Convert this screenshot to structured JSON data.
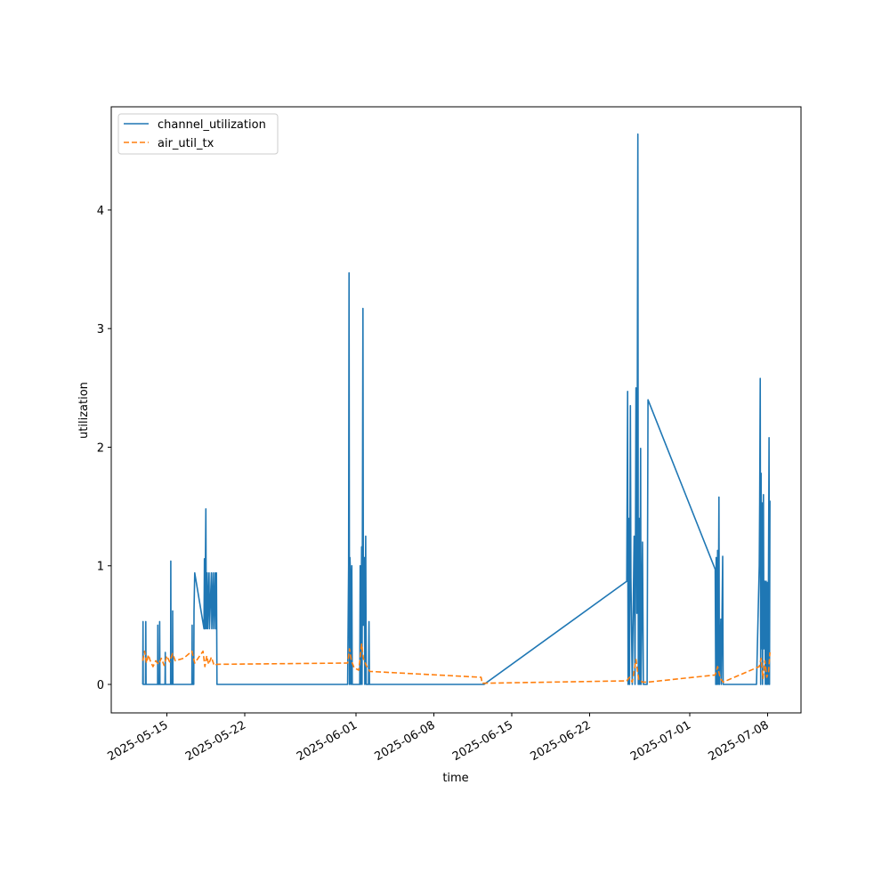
{
  "chart_data": {
    "type": "line",
    "title": "",
    "xlabel": "time",
    "ylabel": "utilization",
    "x_is_date": true,
    "xlim": [
      "2025-05-10",
      "2025-07-11"
    ],
    "ylim": [
      -0.24,
      4.87
    ],
    "xticks": [
      {
        "value": "2025-05-15",
        "label": "2025-05-15"
      },
      {
        "value": "2025-05-22",
        "label": "2025-05-22"
      },
      {
        "value": "2025-06-01",
        "label": "2025-06-01"
      },
      {
        "value": "2025-06-08",
        "label": "2025-06-08"
      },
      {
        "value": "2025-06-15",
        "label": "2025-06-15"
      },
      {
        "value": "2025-06-22",
        "label": "2025-06-22"
      },
      {
        "value": "2025-07-01",
        "label": "2025-07-01"
      },
      {
        "value": "2025-07-08",
        "label": "2025-07-08"
      }
    ],
    "yticks": [
      {
        "value": 0,
        "label": "0"
      },
      {
        "value": 1,
        "label": "1"
      },
      {
        "value": 2,
        "label": "2"
      },
      {
        "value": 3,
        "label": "3"
      },
      {
        "value": 4,
        "label": "4"
      }
    ],
    "grid": false,
    "legend_position": "top-left",
    "series": [
      {
        "name": "channel_utilization",
        "color": "#1f77b4",
        "style": "solid",
        "points": [
          [
            "2025-05-12T20:00",
            0
          ],
          [
            "2025-05-12T20:30",
            0.53
          ],
          [
            "2025-05-12T21:00",
            0
          ],
          [
            "2025-05-13T02:00",
            0
          ],
          [
            "2025-05-13T02:30",
            0.53
          ],
          [
            "2025-05-13T03:00",
            0
          ],
          [
            "2025-05-13T12:00",
            0
          ],
          [
            "2025-05-14T00:00",
            0
          ],
          [
            "2025-05-14T04:00",
            0
          ],
          [
            "2025-05-14T04:30",
            0.5
          ],
          [
            "2025-05-14T05:00",
            0
          ],
          [
            "2025-05-14T08:00",
            0
          ],
          [
            "2025-05-14T08:30",
            0.53
          ],
          [
            "2025-05-14T09:00",
            0
          ],
          [
            "2025-05-14T20:00",
            0
          ],
          [
            "2025-05-14T20:30",
            0.27
          ],
          [
            "2025-05-14T21:00",
            0
          ],
          [
            "2025-05-15T08:00",
            0
          ],
          [
            "2025-05-15T08:30",
            1.04
          ],
          [
            "2025-05-15T09:00",
            0
          ],
          [
            "2025-05-15T12:00",
            0
          ],
          [
            "2025-05-15T12:30",
            0.62
          ],
          [
            "2025-05-15T13:00",
            0
          ],
          [
            "2025-05-16T12:00",
            0
          ],
          [
            "2025-05-17T00:00",
            0
          ],
          [
            "2025-05-17T06:00",
            0
          ],
          [
            "2025-05-17T06:30",
            0.5
          ],
          [
            "2025-05-17T07:00",
            0
          ],
          [
            "2025-05-17T10:00",
            0
          ],
          [
            "2025-05-17T10:30",
            0.62
          ],
          [
            "2025-05-17T12:00",
            0.94
          ],
          [
            "2025-05-18T08:00",
            0.47
          ],
          [
            "2025-05-18T09:00",
            1.06
          ],
          [
            "2025-05-18T10:00",
            0.47
          ],
          [
            "2025-05-18T12:00",
            1.48
          ],
          [
            "2025-05-18T13:00",
            0.47
          ],
          [
            "2025-05-18T15:00",
            0.94
          ],
          [
            "2025-05-18T16:00",
            0.47
          ],
          [
            "2025-05-18T19:00",
            0.94
          ],
          [
            "2025-05-18T20:00",
            0.47
          ],
          [
            "2025-05-19T00:00",
            0.94
          ],
          [
            "2025-05-19T01:00",
            0.47
          ],
          [
            "2025-05-19T04:00",
            0.94
          ],
          [
            "2025-05-19T05:00",
            0.47
          ],
          [
            "2025-05-19T08:00",
            0.94
          ],
          [
            "2025-05-19T09:00",
            0.47
          ],
          [
            "2025-05-19T11:00",
            0.94
          ],
          [
            "2025-05-19T12:00",
            0
          ],
          [
            "2025-05-25T00:00",
            0
          ],
          [
            "2025-05-31T00:00",
            0
          ],
          [
            "2025-05-31T06:00",
            0
          ],
          [
            "2025-05-31T08:00",
            1.0
          ],
          [
            "2025-05-31T09:00",
            3.47
          ],
          [
            "2025-05-31T10:00",
            0
          ],
          [
            "2025-05-31T11:00",
            1.07
          ],
          [
            "2025-05-31T12:00",
            0.93
          ],
          [
            "2025-05-31T13:00",
            0
          ],
          [
            "2025-05-31T15:00",
            1.0
          ],
          [
            "2025-05-31T16:00",
            0
          ],
          [
            "2025-06-01T00:00",
            0
          ],
          [
            "2025-06-01T08:00",
            0
          ],
          [
            "2025-06-01T09:00",
            1.0
          ],
          [
            "2025-06-01T10:00",
            0
          ],
          [
            "2025-06-01T12:00",
            1.16
          ],
          [
            "2025-06-01T13:00",
            0
          ],
          [
            "2025-06-01T15:00",
            3.17
          ],
          [
            "2025-06-01T16:00",
            0.5
          ],
          [
            "2025-06-01T18:00",
            1.07
          ],
          [
            "2025-06-01T19:00",
            0
          ],
          [
            "2025-06-01T21:00",
            1.25
          ],
          [
            "2025-06-01T22:00",
            0
          ],
          [
            "2025-06-02T03:00",
            0
          ],
          [
            "2025-06-02T04:00",
            0.53
          ],
          [
            "2025-06-02T05:00",
            0
          ],
          [
            "2025-06-12T00:00",
            0
          ],
          [
            "2025-06-12T12:00",
            0
          ],
          [
            "2025-06-25T08:00",
            0.87
          ],
          [
            "2025-06-25T10:00",
            2.47
          ],
          [
            "2025-06-25T11:00",
            0
          ],
          [
            "2025-06-25T13:00",
            1.4
          ],
          [
            "2025-06-25T14:00",
            0
          ],
          [
            "2025-06-25T16:00",
            2.35
          ],
          [
            "2025-06-25T17:00",
            0.9
          ],
          [
            "2025-06-25T20:00",
            0
          ],
          [
            "2025-06-26T00:00",
            1.25
          ],
          [
            "2025-06-26T02:00",
            0
          ],
          [
            "2025-06-26T04:00",
            2.5
          ],
          [
            "2025-06-26T06:00",
            0.6
          ],
          [
            "2025-06-26T08:00",
            4.64
          ],
          [
            "2025-06-26T09:00",
            0
          ],
          [
            "2025-06-26T11:00",
            1.4
          ],
          [
            "2025-06-26T12:00",
            0
          ],
          [
            "2025-06-26T14:00",
            1.99
          ],
          [
            "2025-06-26T15:00",
            0
          ],
          [
            "2025-06-26T18:00",
            1.2
          ],
          [
            "2025-06-26T20:00",
            0
          ],
          [
            "2025-06-27T04:00",
            0
          ],
          [
            "2025-06-27T06:00",
            2.4
          ],
          [
            "2025-07-03T07:00",
            0.97
          ],
          [
            "2025-07-03T08:00",
            0
          ],
          [
            "2025-07-03T09:00",
            1.07
          ],
          [
            "2025-07-03T10:00",
            0
          ],
          [
            "2025-07-03T12:00",
            1.13
          ],
          [
            "2025-07-03T13:00",
            0
          ],
          [
            "2025-07-03T15:00",
            1.58
          ],
          [
            "2025-07-03T16:00",
            0
          ],
          [
            "2025-07-03T19:00",
            0.55
          ],
          [
            "2025-07-03T20:00",
            0
          ],
          [
            "2025-07-03T23:00",
            1.08
          ],
          [
            "2025-07-04T00:00",
            0
          ],
          [
            "2025-07-07T00:00",
            0
          ],
          [
            "2025-07-07T06:00",
            1.0
          ],
          [
            "2025-07-07T07:00",
            1.55
          ],
          [
            "2025-07-07T08:00",
            2.58
          ],
          [
            "2025-07-07T09:00",
            0
          ],
          [
            "2025-07-07T10:00",
            1.78
          ],
          [
            "2025-07-07T11:00",
            0.3
          ],
          [
            "2025-07-07T12:00",
            1.53
          ],
          [
            "2025-07-07T13:00",
            0
          ],
          [
            "2025-07-07T15:00",
            1.6
          ],
          [
            "2025-07-07T16:00",
            0.3
          ],
          [
            "2025-07-07T18:00",
            0.87
          ],
          [
            "2025-07-07T19:00",
            0
          ],
          [
            "2025-07-07T21:00",
            0.87
          ],
          [
            "2025-07-07T22:00",
            0
          ],
          [
            "2025-07-08T00:00",
            0.86
          ],
          [
            "2025-07-08T01:00",
            0
          ],
          [
            "2025-07-08T03:00",
            2.08
          ],
          [
            "2025-07-08T04:00",
            0
          ],
          [
            "2025-07-08T05:00",
            1.55
          ]
        ]
      },
      {
        "name": "air_util_tx",
        "color": "#ff7f0e",
        "style": "dashed",
        "points": [
          [
            "2025-05-12T20:00",
            0.2
          ],
          [
            "2025-05-13T00:00",
            0.28
          ],
          [
            "2025-05-13T04:00",
            0.18
          ],
          [
            "2025-05-13T08:00",
            0.25
          ],
          [
            "2025-05-13T12:00",
            0.2
          ],
          [
            "2025-05-13T18:00",
            0.15
          ],
          [
            "2025-05-14T00:00",
            0.2
          ],
          [
            "2025-05-14T06:00",
            0.17
          ],
          [
            "2025-05-14T12:00",
            0.22
          ],
          [
            "2025-05-14T18:00",
            0.16
          ],
          [
            "2025-05-15T00:00",
            0.24
          ],
          [
            "2025-05-15T06:00",
            0.19
          ],
          [
            "2025-05-15T12:00",
            0.26
          ],
          [
            "2025-05-15T18:00",
            0.2
          ],
          [
            "2025-05-16T12:00",
            0.22
          ],
          [
            "2025-05-17T06:00",
            0.28
          ],
          [
            "2025-05-17T12:00",
            0.18
          ],
          [
            "2025-05-18T06:00",
            0.28
          ],
          [
            "2025-05-18T10:00",
            0.15
          ],
          [
            "2025-05-18T14:00",
            0.24
          ],
          [
            "2025-05-18T18:00",
            0.17
          ],
          [
            "2025-05-19T00:00",
            0.23
          ],
          [
            "2025-05-19T06:00",
            0.16
          ],
          [
            "2025-05-19T12:00",
            0.17
          ],
          [
            "2025-05-31T06:00",
            0.18
          ],
          [
            "2025-05-31T10:00",
            0.3
          ],
          [
            "2025-05-31T14:00",
            0.2
          ],
          [
            "2025-05-31T20:00",
            0.14
          ],
          [
            "2025-06-01T06:00",
            0.12
          ],
          [
            "2025-06-01T12:00",
            0.34
          ],
          [
            "2025-06-01T16:00",
            0.22
          ],
          [
            "2025-06-01T22:00",
            0.16
          ],
          [
            "2025-06-02T06:00",
            0.11
          ],
          [
            "2025-06-12T06:00",
            0.06
          ],
          [
            "2025-06-12T08:00",
            0.01
          ],
          [
            "2025-06-25T08:00",
            0.03
          ],
          [
            "2025-06-25T14:00",
            0.06
          ],
          [
            "2025-06-25T20:00",
            0.02
          ],
          [
            "2025-06-26T04:00",
            0.21
          ],
          [
            "2025-06-26T10:00",
            0.04
          ],
          [
            "2025-06-26T18:00",
            0.02
          ],
          [
            "2025-06-27T06:00",
            0.02
          ],
          [
            "2025-07-03T07:00",
            0.08
          ],
          [
            "2025-07-03T12:00",
            0.15
          ],
          [
            "2025-07-03T18:00",
            0.05
          ],
          [
            "2025-07-04T00:00",
            0.02
          ],
          [
            "2025-07-07T06:00",
            0.15
          ],
          [
            "2025-07-07T10:00",
            0.22
          ],
          [
            "2025-07-07T14:00",
            0.05
          ],
          [
            "2025-07-07T18:00",
            0.2
          ],
          [
            "2025-07-07T22:00",
            0.06
          ],
          [
            "2025-07-08T02:00",
            0.1
          ],
          [
            "2025-07-08T05:00",
            0.27
          ]
        ]
      }
    ]
  }
}
